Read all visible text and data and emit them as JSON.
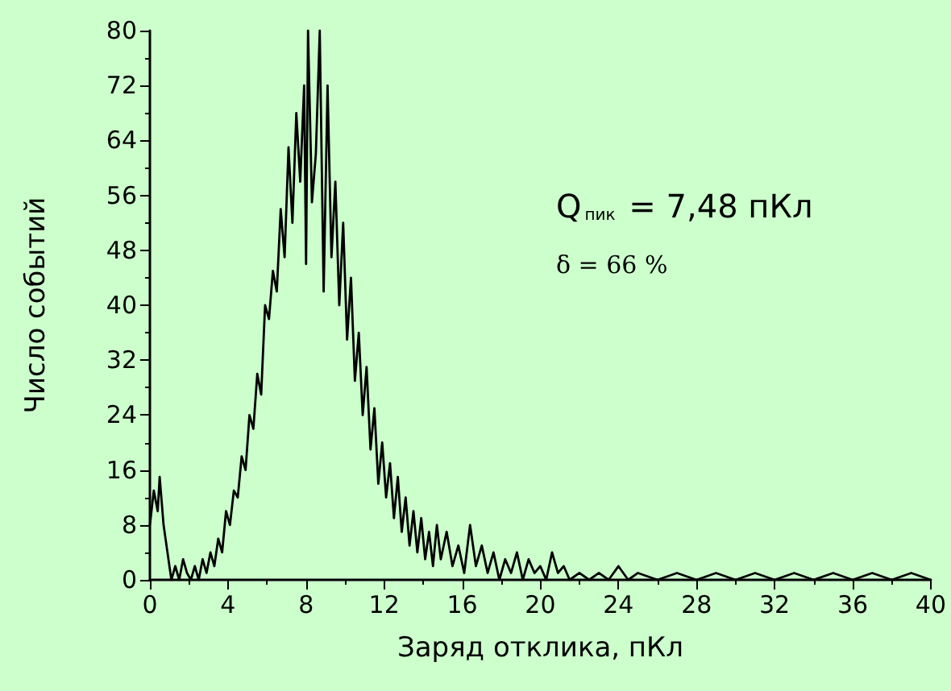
{
  "chart_data": {
    "type": "line",
    "xlabel": "Заряд отклика, пКл",
    "ylabel": "Число событий",
    "annotations": [
      "Q$_{пик}$ = 7,48 пКл",
      "δ = 66 %"
    ],
    "x": [
      0,
      0.2,
      0.4,
      0.5,
      0.7,
      0.9,
      1.1,
      1.3,
      1.5,
      1.7,
      1.9,
      2.1,
      2.3,
      2.5,
      2.7,
      2.9,
      3.1,
      3.3,
      3.5,
      3.7,
      3.9,
      4.1,
      4.3,
      4.5,
      4.7,
      4.9,
      5.1,
      5.3,
      5.5,
      5.7,
      5.9,
      6.1,
      6.3,
      6.5,
      6.7,
      6.9,
      7.1,
      7.3,
      7.5,
      7.7,
      7.9,
      8.0,
      8.1,
      8.3,
      8.5,
      8.7,
      8.9,
      9.1,
      9.3,
      9.5,
      9.7,
      9.9,
      10.1,
      10.3,
      10.5,
      10.7,
      10.9,
      11.1,
      11.3,
      11.5,
      11.7,
      11.9,
      12.1,
      12.3,
      12.5,
      12.7,
      12.9,
      13.1,
      13.3,
      13.5,
      13.7,
      13.9,
      14.1,
      14.3,
      14.5,
      14.7,
      14.9,
      15.2,
      15.5,
      15.8,
      16.1,
      16.4,
      16.7,
      17.0,
      17.3,
      17.6,
      17.9,
      18.2,
      18.5,
      18.8,
      19.1,
      19.4,
      19.7,
      20.0,
      20.3,
      20.6,
      20.9,
      21.2,
      21.5,
      22.0,
      22.5,
      23.0,
      23.5,
      24.0,
      24.5,
      25.0,
      26,
      27,
      28,
      29,
      30,
      31,
      32,
      33,
      34,
      35,
      36,
      37,
      38,
      39,
      40
    ],
    "values": [
      8,
      13,
      10,
      15,
      8,
      4,
      0,
      2,
      0,
      3,
      1,
      0,
      2,
      0,
      3,
      1,
      4,
      2,
      6,
      4,
      10,
      8,
      13,
      12,
      18,
      16,
      24,
      22,
      30,
      27,
      40,
      38,
      45,
      42,
      54,
      47,
      63,
      52,
      68,
      58,
      72,
      46,
      80,
      55,
      62,
      80,
      42,
      72,
      47,
      58,
      40,
      52,
      35,
      44,
      29,
      36,
      24,
      31,
      19,
      25,
      14,
      20,
      12,
      17,
      9,
      15,
      7,
      12,
      5,
      10,
      4,
      9,
      3,
      7,
      2,
      8,
      3,
      7,
      2,
      5,
      1,
      8,
      2,
      5,
      1,
      4,
      0,
      3,
      1,
      4,
      0,
      3,
      1,
      2,
      0,
      4,
      1,
      2,
      0,
      1,
      0,
      1,
      0,
      2,
      0,
      1,
      0,
      1,
      0,
      1,
      0,
      1,
      0,
      1,
      0,
      1,
      0,
      1,
      0,
      1,
      0
    ],
    "color": "#000000",
    "xlim": [
      0,
      40
    ],
    "xticks": [
      0,
      4,
      8,
      12,
      16,
      20,
      24,
      28,
      32,
      36,
      40
    ],
    "ylim": [
      0,
      80
    ],
    "yticks": [
      0,
      8,
      16,
      24,
      32,
      40,
      48,
      56,
      64,
      72,
      80
    ],
    "grid": false
  }
}
